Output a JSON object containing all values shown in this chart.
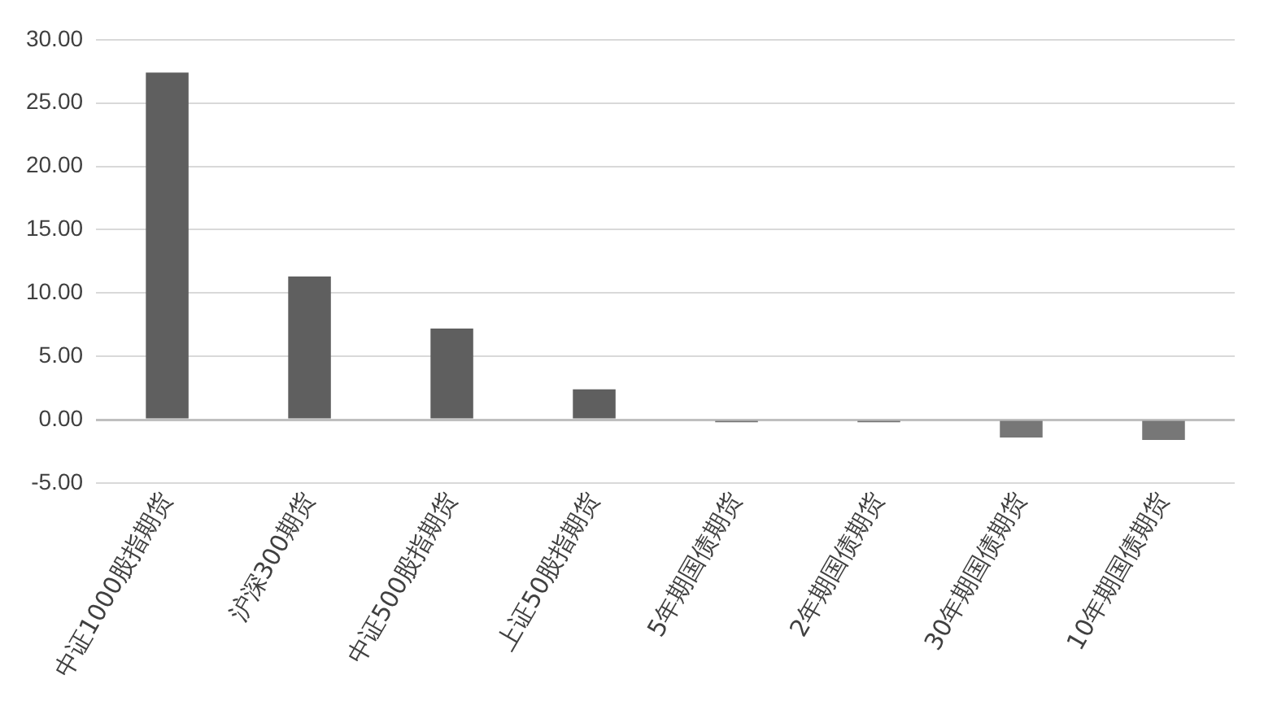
{
  "chart_data": {
    "type": "bar",
    "categories": [
      "中证1000股指期货",
      "沪深300期货",
      "中证500股指期货",
      "上证50股指期货",
      "5年期国债期货",
      "2年期国债期货",
      "30年期国债期货",
      "10年期国债期货"
    ],
    "values": [
      27.4,
      11.3,
      7.2,
      2.4,
      -0.2,
      -0.2,
      -1.4,
      -1.6
    ],
    "colors": [
      "#5f5f5f",
      "#5f5f5f",
      "#5f5f5f",
      "#5f5f5f",
      "#777777",
      "#777777",
      "#777777",
      "#777777"
    ],
    "ylim": [
      -5,
      30
    ],
    "yticks": [
      {
        "value": -5,
        "label": "-5.00"
      },
      {
        "value": 0,
        "label": "0.00"
      },
      {
        "value": 5,
        "label": "5.00"
      },
      {
        "value": 10,
        "label": "10.00"
      },
      {
        "value": 15,
        "label": "15.00"
      },
      {
        "value": 20,
        "label": "20.00"
      },
      {
        "value": 25,
        "label": "25.00"
      },
      {
        "value": 30,
        "label": "30.00"
      }
    ],
    "grid": "y",
    "legend": false
  }
}
